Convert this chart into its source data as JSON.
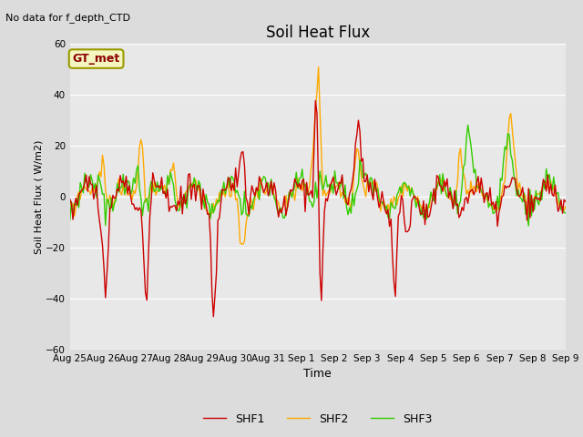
{
  "title": "Soil Heat Flux",
  "xlabel": "Time",
  "ylabel": "Soil Heat Flux (W/m2)",
  "note": "No data for f_depth_CTD",
  "station_label": "GT_met",
  "ylim": [
    -60,
    60
  ],
  "yticks": [
    -60,
    -40,
    -20,
    0,
    20,
    40,
    60
  ],
  "line_colors": {
    "SHF1": "#cc0000",
    "SHF2": "#ffaa00",
    "SHF3": "#33cc00"
  },
  "line_width": 1.0,
  "bg_color": "#dcdcdc",
  "plot_bg_color": "#e8e8e8",
  "x_tick_labels": [
    "Aug 25",
    "Aug 26",
    "Aug 27",
    "Aug 28",
    "Aug 29",
    "Aug 30",
    "Aug 31",
    "Sep 1",
    "Sep 2",
    "Sep 3",
    "Sep 4",
    "Sep 5",
    "Sep 6",
    "Sep 7",
    "Sep 8",
    "Sep 9"
  ],
  "n_points": 336
}
